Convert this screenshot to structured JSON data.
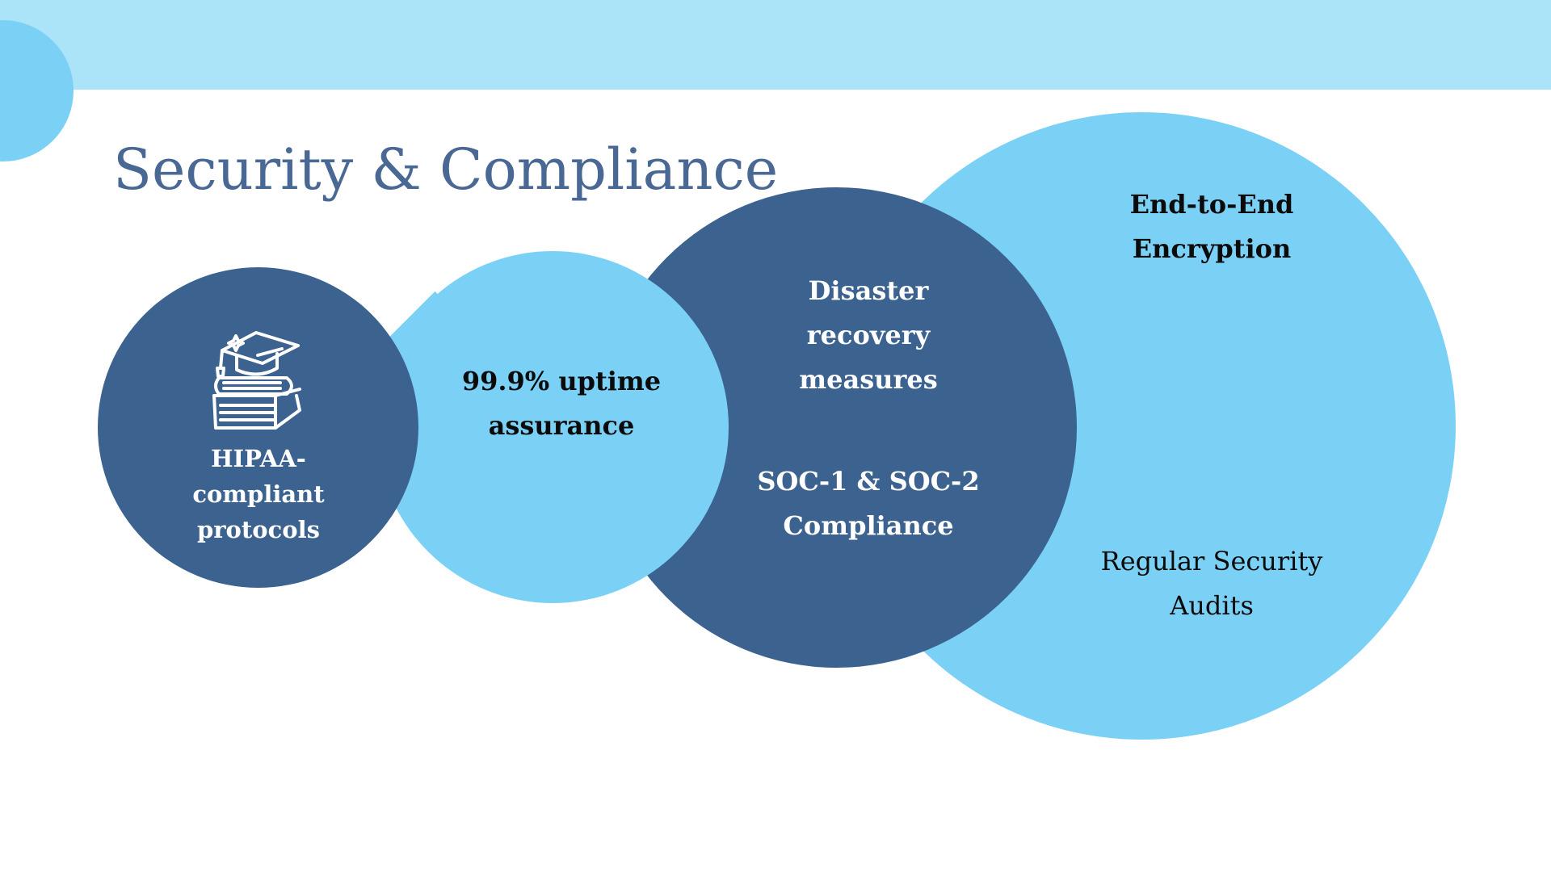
{
  "title": "Security & Compliance",
  "colors": {
    "top_band": "#ABE3F8",
    "light_blue": "#7BD1F5",
    "dark_blue": "#3C6290",
    "title_text": "#4A6894",
    "dark_text": "#0B0B0B",
    "white_text": "#FFFFFF"
  },
  "diagram": {
    "nodes": [
      {
        "id": "hipaa",
        "label": "HIPAA-compliant protocols",
        "icon": "graduation-cap-books-icon"
      },
      {
        "id": "uptime",
        "label": "99.9% uptime assurance"
      },
      {
        "id": "disaster",
        "label": "Disaster recovery measures"
      },
      {
        "id": "soc",
        "label": "SOC-1 & SOC-2 Compliance"
      },
      {
        "id": "encryption",
        "label": "End-to-End Encryption"
      },
      {
        "id": "audits",
        "label": "Regular Security Audits"
      }
    ]
  }
}
